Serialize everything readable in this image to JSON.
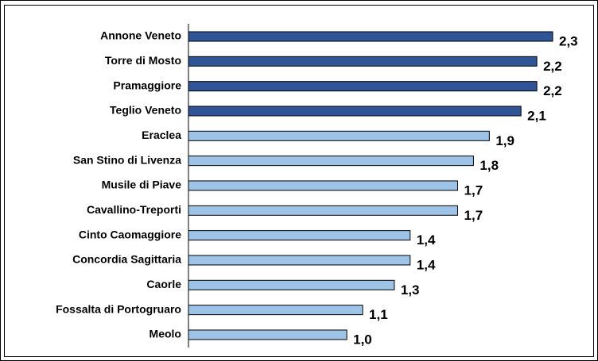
{
  "chart_data": {
    "type": "bar",
    "orientation": "horizontal",
    "categories": [
      "Annone Veneto",
      "Torre di Mosto",
      "Pramaggiore",
      "Teglio Veneto",
      "Eraclea",
      "San Stino di Livenza",
      "Musile di Piave",
      "Cavallino-Treporti",
      "Cinto Caomaggiore",
      "Concordia Sagittaria",
      "Caorle",
      "Fossalta di Portogruaro",
      "Meolo"
    ],
    "values": [
      2.3,
      2.2,
      2.2,
      2.1,
      1.9,
      1.8,
      1.7,
      1.7,
      1.4,
      1.4,
      1.3,
      1.1,
      1.0
    ],
    "value_labels": [
      "2,3",
      "2,2",
      "2,2",
      "2,1",
      "1,9",
      "1,8",
      "1,7",
      "1,7",
      "1,4",
      "1,4",
      "1,3",
      "1,1",
      "1,0"
    ],
    "colors": [
      "#2f5597",
      "#2f5597",
      "#2f5597",
      "#2f5597",
      "#9dc3e6",
      "#9dc3e6",
      "#9dc3e6",
      "#9dc3e6",
      "#9dc3e6",
      "#9dc3e6",
      "#9dc3e6",
      "#9dc3e6",
      "#9dc3e6"
    ]
  }
}
